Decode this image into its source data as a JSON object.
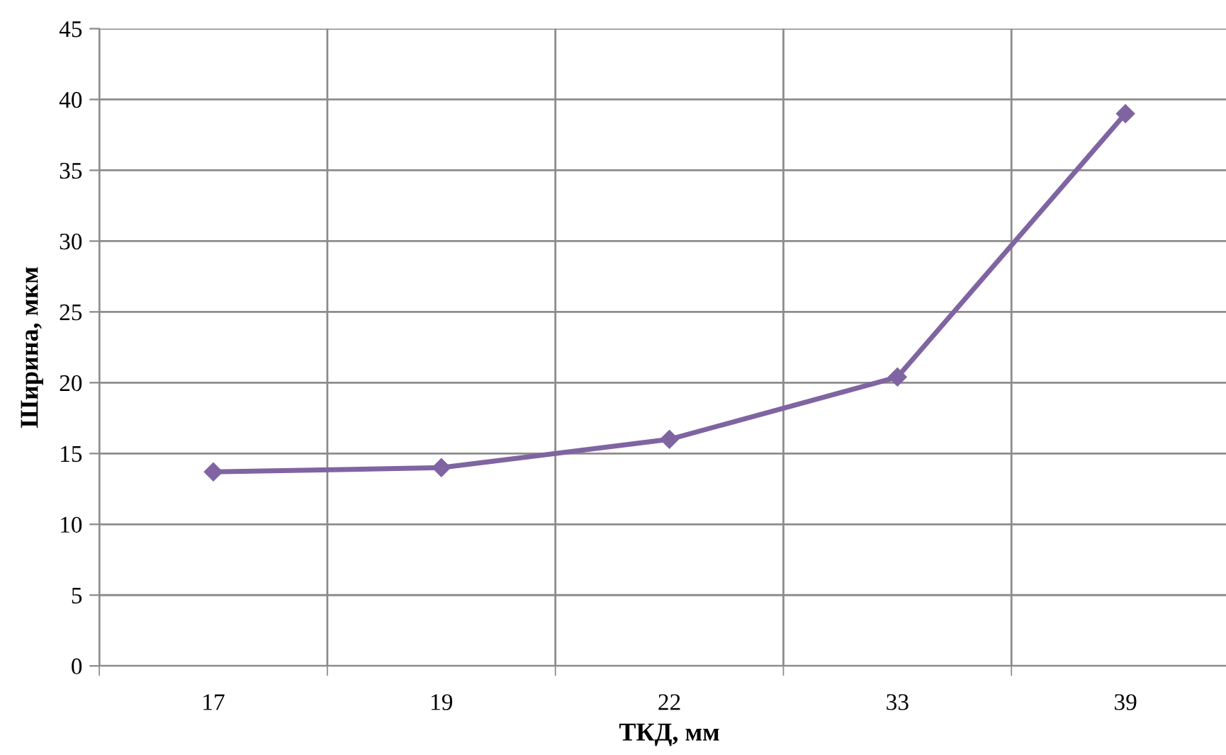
{
  "chart_data": {
    "type": "line",
    "xlabel": "ТКД, мм",
    "ylabel": "Ширина, мкм",
    "categories": [
      "17",
      "19",
      "22",
      "33",
      "39"
    ],
    "series": [
      {
        "color": "#8064a2",
        "values": [
          13.7,
          14.0,
          16.0,
          20.4,
          39.0
        ]
      }
    ],
    "ylim": [
      0,
      45
    ],
    "yticks": [
      0,
      5,
      10,
      15,
      20,
      25,
      30,
      35,
      40,
      45
    ],
    "grid": true,
    "marker": "diamond",
    "line_style": "solid"
  }
}
